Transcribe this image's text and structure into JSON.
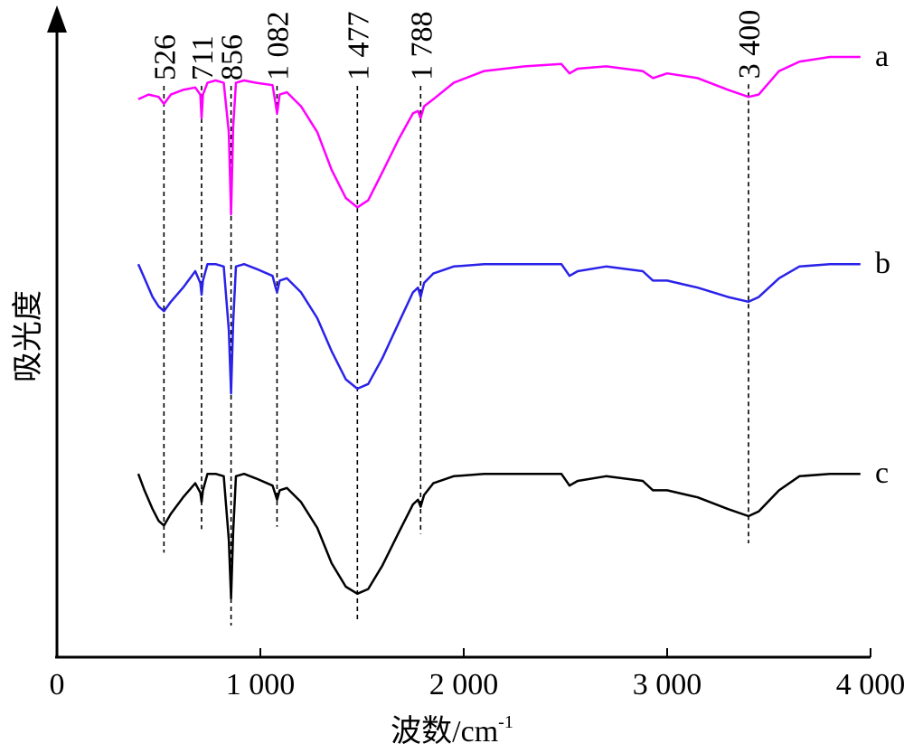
{
  "chart_data": {
    "type": "line",
    "title": "",
    "xlabel": "波数/cm",
    "xlabel_superscript": "-1",
    "ylabel": "吸光度",
    "xlim": [
      0,
      4000
    ],
    "x_ticks": [
      0,
      1000,
      2000,
      3000,
      4000
    ],
    "x_tick_labels": [
      "0",
      "1 000",
      "2 000",
      "3 000",
      "4 000"
    ],
    "y_ticks_shown": false,
    "grid": false,
    "peak_markers": [
      {
        "x": 526,
        "label": "526"
      },
      {
        "x": 711,
        "label": "711"
      },
      {
        "x": 856,
        "label": "856"
      },
      {
        "x": 1082,
        "label": "1 082"
      },
      {
        "x": 1477,
        "label": "1 477"
      },
      {
        "x": 1788,
        "label": "1 788"
      },
      {
        "x": 3400,
        "label": "3 400"
      }
    ],
    "series": [
      {
        "name": "a",
        "color": "#ff00ff",
        "offset": 2,
        "points": [
          [
            400,
            0.84
          ],
          [
            450,
            0.86
          ],
          [
            500,
            0.85
          ],
          [
            526,
            0.82
          ],
          [
            560,
            0.86
          ],
          [
            620,
            0.88
          ],
          [
            680,
            0.89
          ],
          [
            705,
            0.86
          ],
          [
            711,
            0.76
          ],
          [
            718,
            0.86
          ],
          [
            740,
            0.91
          ],
          [
            780,
            0.92
          ],
          [
            820,
            0.91
          ],
          [
            845,
            0.7
          ],
          [
            856,
            0.35
          ],
          [
            866,
            0.72
          ],
          [
            880,
            0.91
          ],
          [
            920,
            0.92
          ],
          [
            980,
            0.91
          ],
          [
            1060,
            0.9
          ],
          [
            1075,
            0.82
          ],
          [
            1082,
            0.78
          ],
          [
            1095,
            0.86
          ],
          [
            1130,
            0.87
          ],
          [
            1200,
            0.81
          ],
          [
            1280,
            0.7
          ],
          [
            1350,
            0.54
          ],
          [
            1420,
            0.42
          ],
          [
            1477,
            0.38
          ],
          [
            1530,
            0.41
          ],
          [
            1600,
            0.53
          ],
          [
            1680,
            0.67
          ],
          [
            1750,
            0.78
          ],
          [
            1775,
            0.79
          ],
          [
            1788,
            0.76
          ],
          [
            1805,
            0.81
          ],
          [
            1850,
            0.84
          ],
          [
            1950,
            0.91
          ],
          [
            2100,
            0.96
          ],
          [
            2300,
            0.98
          ],
          [
            2480,
            0.99
          ],
          [
            2520,
            0.95
          ],
          [
            2560,
            0.97
          ],
          [
            2700,
            0.98
          ],
          [
            2880,
            0.96
          ],
          [
            2930,
            0.93
          ],
          [
            3000,
            0.95
          ],
          [
            3150,
            0.93
          ],
          [
            3300,
            0.88
          ],
          [
            3400,
            0.85
          ],
          [
            3450,
            0.86
          ],
          [
            3550,
            0.96
          ],
          [
            3650,
            1.0
          ],
          [
            3800,
            1.02
          ],
          [
            3950,
            1.02
          ]
        ]
      },
      {
        "name": "b",
        "color": "#2a22e8",
        "offset": 1,
        "points": [
          [
            400,
            1.0
          ],
          [
            430,
            0.94
          ],
          [
            470,
            0.86
          ],
          [
            500,
            0.82
          ],
          [
            526,
            0.8
          ],
          [
            560,
            0.84
          ],
          [
            620,
            0.9
          ],
          [
            680,
            0.97
          ],
          [
            705,
            0.92
          ],
          [
            711,
            0.87
          ],
          [
            718,
            0.93
          ],
          [
            740,
            1.0
          ],
          [
            780,
            1.0
          ],
          [
            820,
            0.99
          ],
          [
            845,
            0.72
          ],
          [
            856,
            0.45
          ],
          [
            866,
            0.75
          ],
          [
            880,
            0.99
          ],
          [
            920,
            1.0
          ],
          [
            980,
            0.98
          ],
          [
            1060,
            0.95
          ],
          [
            1075,
            0.9
          ],
          [
            1082,
            0.88
          ],
          [
            1095,
            0.93
          ],
          [
            1130,
            0.94
          ],
          [
            1200,
            0.88
          ],
          [
            1280,
            0.77
          ],
          [
            1350,
            0.63
          ],
          [
            1420,
            0.51
          ],
          [
            1477,
            0.47
          ],
          [
            1530,
            0.49
          ],
          [
            1600,
            0.6
          ],
          [
            1680,
            0.75
          ],
          [
            1750,
            0.88
          ],
          [
            1775,
            0.9
          ],
          [
            1788,
            0.86
          ],
          [
            1805,
            0.92
          ],
          [
            1850,
            0.96
          ],
          [
            1950,
            0.99
          ],
          [
            2100,
            1.0
          ],
          [
            2300,
            1.0
          ],
          [
            2480,
            1.0
          ],
          [
            2520,
            0.95
          ],
          [
            2560,
            0.97
          ],
          [
            2700,
            0.99
          ],
          [
            2880,
            0.97
          ],
          [
            2930,
            0.93
          ],
          [
            3000,
            0.93
          ],
          [
            3150,
            0.9
          ],
          [
            3300,
            0.86
          ],
          [
            3400,
            0.84
          ],
          [
            3450,
            0.86
          ],
          [
            3550,
            0.94
          ],
          [
            3650,
            0.99
          ],
          [
            3800,
            1.0
          ],
          [
            3950,
            1.0
          ]
        ]
      },
      {
        "name": "c",
        "color": "#000000",
        "offset": 0,
        "points": [
          [
            400,
            1.0
          ],
          [
            430,
            0.93
          ],
          [
            470,
            0.85
          ],
          [
            500,
            0.8
          ],
          [
            526,
            0.78
          ],
          [
            560,
            0.83
          ],
          [
            620,
            0.9
          ],
          [
            680,
            0.96
          ],
          [
            705,
            0.92
          ],
          [
            711,
            0.88
          ],
          [
            718,
            0.93
          ],
          [
            740,
            1.0
          ],
          [
            780,
            1.0
          ],
          [
            820,
            0.99
          ],
          [
            845,
            0.72
          ],
          [
            856,
            0.47
          ],
          [
            866,
            0.75
          ],
          [
            880,
            0.99
          ],
          [
            920,
            1.0
          ],
          [
            980,
            0.98
          ],
          [
            1060,
            0.95
          ],
          [
            1075,
            0.91
          ],
          [
            1082,
            0.89
          ],
          [
            1095,
            0.93
          ],
          [
            1130,
            0.94
          ],
          [
            1200,
            0.88
          ],
          [
            1280,
            0.77
          ],
          [
            1350,
            0.62
          ],
          [
            1420,
            0.52
          ],
          [
            1477,
            0.49
          ],
          [
            1530,
            0.51
          ],
          [
            1600,
            0.61
          ],
          [
            1680,
            0.75
          ],
          [
            1750,
            0.87
          ],
          [
            1775,
            0.89
          ],
          [
            1788,
            0.86
          ],
          [
            1805,
            0.91
          ],
          [
            1850,
            0.96
          ],
          [
            1950,
            0.99
          ],
          [
            2100,
            1.0
          ],
          [
            2300,
            1.0
          ],
          [
            2480,
            1.0
          ],
          [
            2520,
            0.95
          ],
          [
            2560,
            0.97
          ],
          [
            2700,
            0.99
          ],
          [
            2880,
            0.97
          ],
          [
            2930,
            0.93
          ],
          [
            3000,
            0.93
          ],
          [
            3150,
            0.9
          ],
          [
            3300,
            0.85
          ],
          [
            3400,
            0.82
          ],
          [
            3450,
            0.84
          ],
          [
            3550,
            0.93
          ],
          [
            3650,
            0.99
          ],
          [
            3800,
            1.0
          ],
          [
            3950,
            1.0
          ]
        ]
      }
    ]
  }
}
